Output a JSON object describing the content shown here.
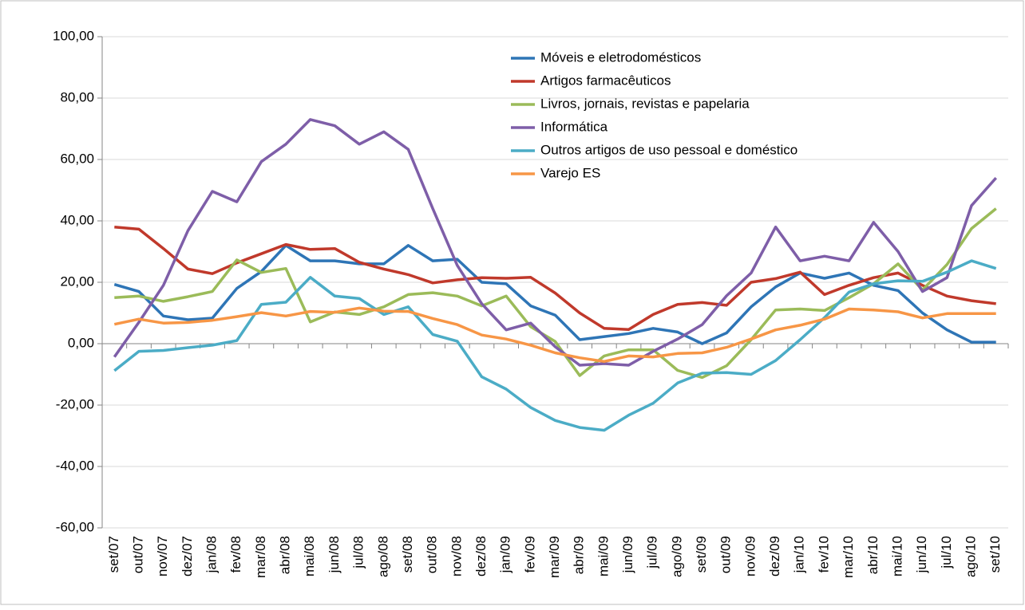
{
  "chart_data": {
    "type": "line",
    "categories": [
      "set/07",
      "out/07",
      "nov/07",
      "dez/07",
      "jan/08",
      "fev/08",
      "mar/08",
      "abr/08",
      "mai/08",
      "jun/08",
      "jul/08",
      "ago/08",
      "set/08",
      "out/08",
      "nov/08",
      "dez/08",
      "jan/09",
      "fev/09",
      "mar/09",
      "abr/09",
      "mai/09",
      "jun/09",
      "jul/09",
      "ago/09",
      "set/09",
      "out/09",
      "nov/09",
      "dez/09",
      "jan/10",
      "fev/10",
      "mar/10",
      "abr/10",
      "mai/10",
      "jun/10",
      "jul/10",
      "ago/10",
      "set/10"
    ],
    "series": [
      {
        "name": "Móveis e eletrodomésticos",
        "color": "#2e75b6",
        "values": [
          19.3,
          17,
          9,
          7.8,
          8.3,
          18,
          23.5,
          32,
          27,
          27,
          26,
          26,
          32,
          27,
          27.5,
          20,
          19.5,
          12.3,
          9.3,
          1.3,
          2.3,
          3.3,
          5,
          3.8,
          0,
          3.5,
          12,
          18.5,
          23,
          21.3,
          23,
          19,
          17.3,
          10,
          4.5,
          0.5,
          0.5
        ]
      },
      {
        "name": "Artigos farmacêuticos",
        "color": "#c0392b",
        "values": [
          38,
          37.3,
          31,
          24.3,
          22.8,
          26.3,
          29.3,
          32.3,
          30.7,
          31,
          26.5,
          24.3,
          22.5,
          19.8,
          20.8,
          21.5,
          21.3,
          21.6,
          16.5,
          10,
          5,
          4.6,
          9.5,
          12.8,
          13.4,
          12.5,
          20,
          21.2,
          23.3,
          16,
          19,
          21.5,
          23,
          19,
          15.5,
          14,
          13
        ]
      },
      {
        "name": "Livros, jornais, revistas e papelaria",
        "color": "#9bbb59",
        "values": [
          15,
          15.5,
          13.8,
          15.3,
          17,
          27.3,
          23.2,
          24.5,
          7.1,
          10.3,
          9.5,
          12,
          16,
          16.6,
          15.5,
          12.3,
          15.5,
          5.5,
          0.7,
          -10.4,
          -4,
          -2,
          -2,
          -8.7,
          -11,
          -7.2,
          1.3,
          11,
          11.3,
          10.8,
          15,
          19.5,
          26,
          17.5,
          25.8,
          37.5,
          44
        ]
      },
      {
        "name": "Informática",
        "color": "#7e5ea8",
        "values": [
          -4.3,
          7,
          19,
          36.8,
          49.6,
          46.2,
          59.3,
          65,
          73,
          71,
          65,
          69,
          63.3,
          44,
          25.5,
          13,
          4.5,
          6.7,
          -1,
          -7,
          -6.5,
          -7,
          -2.5,
          1.5,
          6.2,
          15.6,
          23,
          38,
          27,
          28.5,
          27,
          39.5,
          30,
          17,
          21.5,
          45,
          54
        ]
      },
      {
        "name": "Outros artigos de uso pessoal e doméstico",
        "color": "#4bacc6",
        "values": [
          -8.8,
          -2.5,
          -2.2,
          -1.3,
          -0.5,
          1,
          12.8,
          13.5,
          21.6,
          15.5,
          14.7,
          9.5,
          12,
          3,
          0.8,
          -10.8,
          -14.8,
          -20.8,
          -25,
          -27.3,
          -28.2,
          -23.3,
          -19.4,
          -12.8,
          -9.6,
          -9.4,
          -10,
          -5.5,
          1.3,
          8.5,
          16.8,
          19.5,
          20.5,
          20.3,
          23.3,
          27,
          24.5
        ]
      },
      {
        "name": "Varejo ES",
        "color": "#f79646",
        "values": [
          6.3,
          8,
          6.7,
          6.9,
          7.6,
          8.8,
          10.1,
          9,
          10.5,
          10.2,
          11.6,
          10.6,
          10.5,
          8.2,
          6.2,
          2.8,
          1.5,
          -0.5,
          -3,
          -4.6,
          -5.8,
          -4,
          -4.3,
          -3.2,
          -3,
          -1.2,
          1.5,
          4.5,
          6,
          8,
          11.3,
          11,
          10.4,
          8.4,
          9.8,
          9.8,
          9.8
        ]
      }
    ],
    "ylim": [
      -60,
      100
    ],
    "yticks": [
      {
        "value": -60,
        "label": "-60,00"
      },
      {
        "value": -40,
        "label": "-40,00"
      },
      {
        "value": -20,
        "label": "-20,00"
      },
      {
        "value": 0,
        "label": "0,00"
      },
      {
        "value": 20,
        "label": "20,00"
      },
      {
        "value": 40,
        "label": "40,00"
      },
      {
        "value": 60,
        "label": "60,00"
      },
      {
        "value": 80,
        "label": "80,00"
      },
      {
        "value": 100,
        "label": "100,00"
      }
    ],
    "grid": true,
    "legend": "top-center"
  }
}
